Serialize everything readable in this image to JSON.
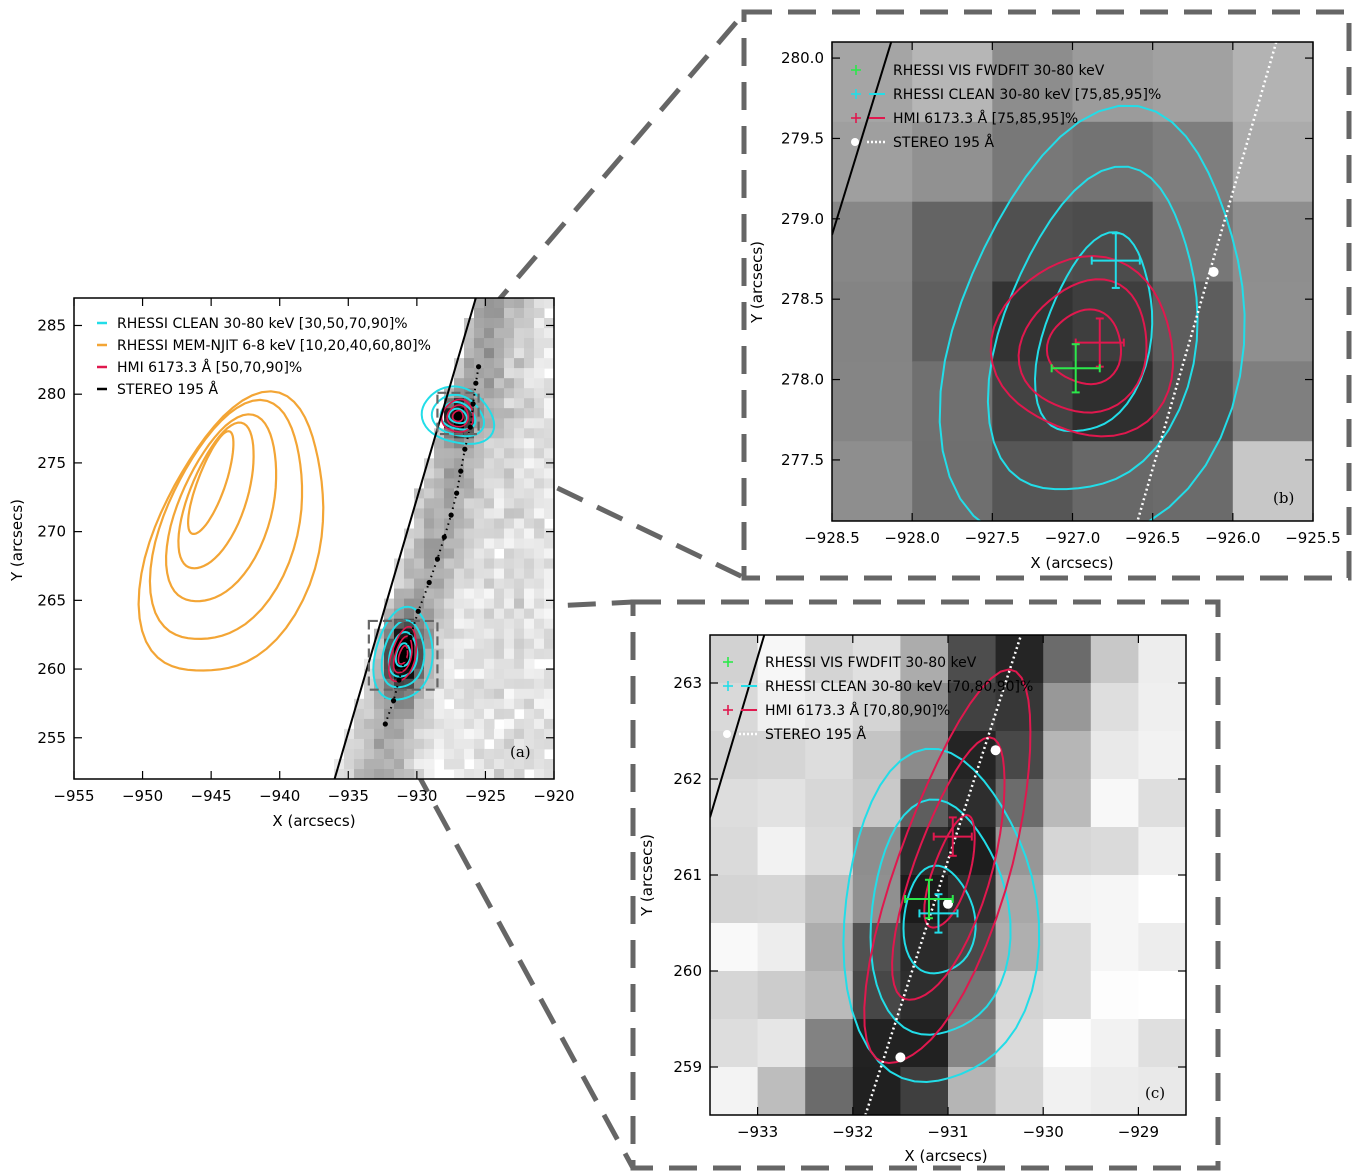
{
  "chart_data": [
    {
      "panel": "(a)",
      "type": "contour",
      "xlabel": "X (arcsecs)",
      "ylabel": "Y (arcsecs)",
      "xlim": [
        -955,
        -920
      ],
      "ylim": [
        252,
        287
      ],
      "xticks": [
        -955,
        -950,
        -945,
        -940,
        -935,
        -930,
        -925,
        -920
      ],
      "yticks": [
        255,
        260,
        265,
        270,
        275,
        280,
        285
      ],
      "legend": [
        {
          "label": "RHESSI CLEAN 30-80 keV [30,50,70,90]%",
          "color": "#22dde8"
        },
        {
          "label": "RHESSI MEM-NJIT 6-8 keV [10,20,40,60,80]%",
          "color": "#f3a535"
        },
        {
          "label": "HMI 6173.3 Å  [50,70,90]%",
          "color": "#e0184e"
        },
        {
          "label": "STEREO 195 Å",
          "color": "#000000"
        }
      ],
      "limb_line": [
        [
          -936,
          252
        ],
        [
          -925.7,
          287
        ]
      ],
      "stereo_points": [
        [
          -932.3,
          256.0
        ],
        [
          -931.7,
          257.7
        ],
        [
          -931.3,
          259.2
        ],
        [
          -930.9,
          260.7
        ],
        [
          -930.5,
          262.3
        ],
        [
          -929.9,
          264.2
        ],
        [
          -929.1,
          266.3
        ],
        [
          -928.5,
          268.0
        ],
        [
          -928.0,
          269.6
        ],
        [
          -927.5,
          271.2
        ],
        [
          -927.1,
          272.8
        ],
        [
          -926.8,
          274.4
        ],
        [
          -926.5,
          276.0
        ],
        [
          -926.1,
          277.6
        ],
        [
          -925.9,
          279.3
        ],
        [
          -925.7,
          280.8
        ],
        [
          -925.5,
          282.0
        ]
      ],
      "mem_contour_levels": [
        10,
        20,
        40,
        60,
        80
      ],
      "mem_peak": [
        -945,
        273.5
      ],
      "clean_sources": [
        [
          -927.0,
          278.4
        ],
        [
          -931.0,
          261.0
        ]
      ],
      "zoom_boxes": [
        {
          "x": [
            -928.5,
            -925.5
          ],
          "y": [
            277.1,
            280.1
          ],
          "target": "(b)"
        },
        {
          "x": [
            -933.5,
            -928.5
          ],
          "y": [
            258.5,
            263.5
          ],
          "target": "(c)"
        }
      ]
    },
    {
      "panel": "(b)",
      "type": "contour",
      "xlabel": "X (arcsecs)",
      "ylabel": "Y (arcsecs)",
      "xlim": [
        -928.5,
        -925.5
      ],
      "ylim": [
        277.12,
        280.1
      ],
      "xticks": [
        -928.5,
        -928.0,
        -927.5,
        -927.0,
        -926.5,
        -926.0,
        -925.5
      ],
      "yticks": [
        277.5,
        278.0,
        278.5,
        279.0,
        279.5,
        280.0
      ],
      "legend": [
        {
          "label": "RHESSI VIS FWDFIT 30-80 keV",
          "color": "#2ce84b"
        },
        {
          "label": "RHESSI CLEAN 30-80 keV [75,85,95]%",
          "color": "#22dde8"
        },
        {
          "label": "HMI 6173.3 Å [75,85,95]%",
          "color": "#e0184e"
        },
        {
          "label": "STEREO 195 Å",
          "color": "#ffffff"
        }
      ],
      "fwdfit_position": {
        "x": -926.98,
        "y": 278.07,
        "xerr": 0.15,
        "yerr": 0.15
      },
      "clean_position": {
        "x": -926.73,
        "y": 278.74,
        "xerr": 0.15,
        "yerr": 0.17
      },
      "hmi_position": {
        "x": -926.83,
        "y": 278.23,
        "xerr": 0.15,
        "yerr": 0.15
      },
      "stereo_points": [
        [
          -926.12,
          278.67
        ]
      ]
    },
    {
      "panel": "(c)",
      "type": "contour",
      "xlabel": "X (arcsecs)",
      "ylabel": "Y (arcsecs)",
      "xlim": [
        -933.5,
        -928.5
      ],
      "ylim": [
        258.5,
        263.5
      ],
      "xticks": [
        -933,
        -932,
        -931,
        -930,
        -929
      ],
      "yticks": [
        259,
        260,
        261,
        262,
        263
      ],
      "legend": [
        {
          "label": "RHESSI VIS FWDFIT 30-80 keV",
          "color": "#2ce84b"
        },
        {
          "label": "RHESSI CLEAN 30-80 keV [70,80,90]%",
          "color": "#22dde8"
        },
        {
          "label": "HMI 6173.3 Å [70,80,90]%",
          "color": "#e0184e"
        },
        {
          "label": "STEREO 195 Å",
          "color": "#ffffff"
        }
      ],
      "fwdfit_position": {
        "x": -931.2,
        "y": 260.75,
        "xerr": 0.25,
        "yerr": 0.2
      },
      "clean_position": {
        "x": -931.1,
        "y": 260.6,
        "xerr": 0.2,
        "yerr": 0.2
      },
      "hmi_position": {
        "x": -930.95,
        "y": 261.4,
        "xerr": 0.2,
        "yerr": 0.2
      },
      "stereo_points": [
        [
          -931.5,
          259.1
        ],
        [
          -931.0,
          260.7
        ],
        [
          -930.5,
          262.3
        ]
      ]
    }
  ]
}
